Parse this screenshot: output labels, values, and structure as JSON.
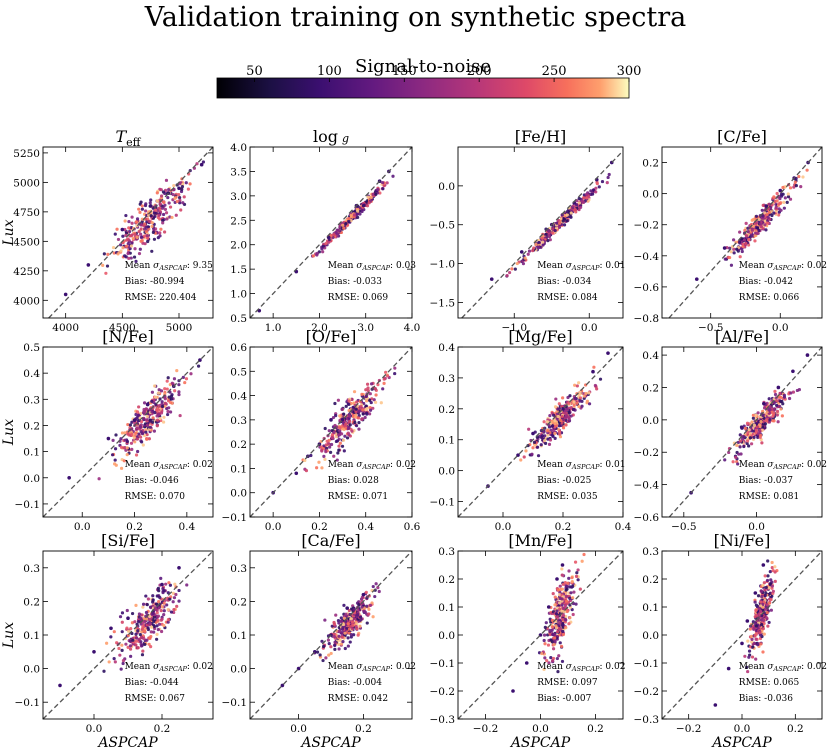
{
  "title": "Validation training on synthetic spectra",
  "colorbar": {
    "label": "Signal-to-noise",
    "ticks": [
      50,
      100,
      150,
      200,
      250,
      300
    ],
    "range": [
      25,
      300
    ],
    "colormap": "magma"
  },
  "chart_data": [
    {
      "type": "scatter",
      "title": "T_eff",
      "title_main": "T",
      "title_sub": "eff",
      "ylabel": "Lux",
      "xlabel": "",
      "xlim": [
        3800,
        5300
      ],
      "ylim": [
        3850,
        5300
      ],
      "xticks": [
        4000,
        4500,
        5000
      ],
      "yticks": [
        4000,
        4250,
        4500,
        4750,
        5000,
        5250
      ],
      "stats": {
        "mean_sigma": "9.35",
        "bias": "-80.994",
        "rmse": "220.404"
      },
      "scatter": [
        300,
        160
      ],
      "seed": 11,
      "points": [
        [
          4000,
          4050
        ],
        [
          4200,
          4300
        ],
        [
          4500,
          4600
        ],
        [
          4750,
          4800
        ],
        [
          5000,
          4950
        ],
        [
          5200,
          5150
        ]
      ]
    },
    {
      "type": "scatter",
      "title": "log g",
      "title_main": "log",
      "title_sub": "g",
      "ylabel": "",
      "xlabel": "",
      "xlim": [
        0.5,
        4.0
      ],
      "ylim": [
        0.5,
        4.0
      ],
      "xticks": [
        1,
        2,
        3,
        4
      ],
      "yticks": [
        0.5,
        1.0,
        1.5,
        2.0,
        2.5,
        3.0,
        3.5,
        4.0
      ],
      "stats": {
        "mean_sigma": "0.03",
        "bias": "-0.033",
        "rmse": "0.069"
      },
      "scatter": [
        0.6,
        0.07
      ],
      "seed": 12,
      "points": [
        [
          0.7,
          0.65
        ],
        [
          1.5,
          1.45
        ],
        [
          2.2,
          2.15
        ],
        [
          2.8,
          2.8
        ],
        [
          3.3,
          3.3
        ],
        [
          3.5,
          3.5
        ]
      ]
    },
    {
      "type": "scatter",
      "title": "[Fe/H]",
      "ylabel": "",
      "xlabel": "",
      "xlim": [
        -1.75,
        0.45
      ],
      "ylim": [
        -1.7,
        0.5
      ],
      "xticks": [
        -1,
        0
      ],
      "yticks": [
        -1.5,
        -1.0,
        -0.5,
        0.0
      ],
      "stats": {
        "mean_sigma": "0.01",
        "bias": "-0.034",
        "rmse": "0.084"
      },
      "scatter": [
        0.45,
        0.06
      ],
      "seed": 13,
      "points": [
        [
          -1.3,
          -1.2
        ],
        [
          -0.9,
          -0.85
        ],
        [
          -0.5,
          -0.5
        ],
        [
          -0.2,
          -0.22
        ],
        [
          0.1,
          0.08
        ],
        [
          0.3,
          0.3
        ]
      ]
    },
    {
      "type": "scatter",
      "title": "[C/Fe]",
      "ylabel": "",
      "xlabel": "",
      "xlim": [
        -0.85,
        0.3
      ],
      "ylim": [
        -0.8,
        0.3
      ],
      "xticks": [
        -0.5,
        0.0
      ],
      "yticks": [
        -0.8,
        -0.6,
        -0.4,
        -0.2,
        0.0,
        0.2
      ],
      "stats": {
        "mean_sigma": "0.02",
        "bias": "-0.042",
        "rmse": "0.066"
      },
      "scatter": [
        0.2,
        0.06
      ],
      "seed": 14,
      "points": [
        [
          -0.6,
          -0.55
        ],
        [
          -0.4,
          -0.35
        ],
        [
          -0.1,
          -0.08
        ],
        [
          0.0,
          0.02
        ],
        [
          0.1,
          0.1
        ],
        [
          0.2,
          0.2
        ]
      ]
    },
    {
      "type": "scatter",
      "title": "[N/Fe]",
      "ylabel": "Lux",
      "xlabel": "",
      "xlim": [
        -0.15,
        0.5
      ],
      "ylim": [
        -0.15,
        0.5
      ],
      "xticks": [
        0.0,
        0.2,
        0.4
      ],
      "yticks": [
        -0.1,
        0.0,
        0.1,
        0.2,
        0.3,
        0.4,
        0.5
      ],
      "stats": {
        "mean_sigma": "0.02",
        "bias": "-0.046",
        "rmse": "0.070"
      },
      "scatter": [
        0.11,
        0.06
      ],
      "seed": 15,
      "points": [
        [
          -0.05,
          0.0
        ],
        [
          0.1,
          0.15
        ],
        [
          0.2,
          0.22
        ],
        [
          0.25,
          0.28
        ],
        [
          0.35,
          0.35
        ],
        [
          0.45,
          0.45
        ]
      ]
    },
    {
      "type": "scatter",
      "title": "[O/Fe]",
      "ylabel": "",
      "xlabel": "",
      "xlim": [
        -0.1,
        0.6
      ],
      "ylim": [
        -0.1,
        0.6
      ],
      "xticks": [
        0.0,
        0.2,
        0.4,
        0.6
      ],
      "yticks": [
        -0.1,
        0.0,
        0.1,
        0.2,
        0.3,
        0.4,
        0.5,
        0.6
      ],
      "stats": {
        "mean_sigma": "0.02",
        "bias": "0.028",
        "rmse": "0.071"
      },
      "scatter": [
        0.13,
        0.07
      ],
      "seed": 16,
      "points": [
        [
          0.0,
          0.0
        ],
        [
          0.1,
          0.08
        ],
        [
          0.15,
          0.15
        ],
        [
          0.2,
          0.2
        ],
        [
          0.25,
          0.3
        ],
        [
          0.3,
          0.3
        ]
      ]
    },
    {
      "type": "scatter",
      "title": "[Mg/Fe]",
      "ylabel": "",
      "xlabel": "",
      "xlim": [
        -0.15,
        0.4
      ],
      "ylim": [
        -0.15,
        0.4
      ],
      "xticks": [
        0.0,
        0.2,
        0.4
      ],
      "yticks": [
        -0.1,
        0.0,
        0.1,
        0.2,
        0.3,
        0.4
      ],
      "stats": {
        "mean_sigma": "0.01",
        "bias": "-0.025",
        "rmse": "0.035"
      },
      "scatter": [
        0.09,
        0.04
      ],
      "seed": 17,
      "points": [
        [
          -0.05,
          -0.05
        ],
        [
          0.05,
          0.05
        ],
        [
          0.1,
          0.12
        ],
        [
          0.2,
          0.2
        ],
        [
          0.3,
          0.32
        ],
        [
          0.35,
          0.38
        ]
      ]
    },
    {
      "type": "scatter",
      "title": "[Al/Fe]",
      "ylabel": "",
      "xlabel": "",
      "xlim": [
        -0.65,
        0.45
      ],
      "ylim": [
        -0.6,
        0.45
      ],
      "xticks": [
        -0.5,
        0.0
      ],
      "yticks": [
        -0.6,
        -0.4,
        -0.2,
        0.0,
        0.2,
        0.4
      ],
      "stats": {
        "mean_sigma": "0.02",
        "bias": "-0.037",
        "rmse": "0.081"
      },
      "scatter": [
        0.17,
        0.07
      ],
      "seed": 18,
      "points": [
        [
          -0.45,
          -0.45
        ],
        [
          -0.1,
          -0.05
        ],
        [
          0.05,
          0.1
        ],
        [
          0.15,
          0.2
        ],
        [
          0.25,
          0.3
        ],
        [
          0.35,
          0.4
        ]
      ]
    },
    {
      "type": "scatter",
      "title": "[Si/Fe]",
      "ylabel": "Lux",
      "xlabel": "ASPCAP",
      "xlim": [
        -0.15,
        0.35
      ],
      "ylim": [
        -0.15,
        0.35
      ],
      "xticks": [
        0.0,
        0.2
      ],
      "yticks": [
        -0.1,
        0.0,
        0.1,
        0.2,
        0.3
      ],
      "stats": {
        "mean_sigma": "0.02",
        "bias": "-0.044",
        "rmse": "0.067"
      },
      "scatter": [
        0.08,
        0.06
      ],
      "seed": 19,
      "points": [
        [
          -0.1,
          -0.05
        ],
        [
          0.0,
          0.05
        ],
        [
          0.05,
          0.12
        ],
        [
          0.1,
          0.15
        ],
        [
          0.2,
          0.25
        ],
        [
          0.25,
          0.3
        ]
      ]
    },
    {
      "type": "scatter",
      "title": "[Ca/Fe]",
      "ylabel": "",
      "xlabel": "ASPCAP",
      "xlim": [
        -0.15,
        0.35
      ],
      "ylim": [
        -0.15,
        0.35
      ],
      "xticks": [
        0.0,
        0.2
      ],
      "yticks": [
        -0.1,
        0.0,
        0.1,
        0.2,
        0.3
      ],
      "stats": {
        "mean_sigma": "0.02",
        "bias": "-0.004",
        "rmse": "0.042"
      },
      "scatter": [
        0.06,
        0.04
      ],
      "seed": 20,
      "points": [
        [
          -0.05,
          -0.05
        ],
        [
          0.0,
          0.0
        ],
        [
          0.05,
          0.05
        ],
        [
          0.1,
          0.1
        ],
        [
          0.15,
          0.18
        ],
        [
          0.2,
          0.22
        ]
      ]
    },
    {
      "type": "scatter",
      "title": "[Mn/Fe]",
      "ylabel": "",
      "xlabel": "ASPCAP",
      "xlim": [
        -0.3,
        0.3
      ],
      "ylim": [
        -0.3,
        0.3
      ],
      "xticks": [
        -0.2,
        0.0,
        0.2
      ],
      "yticks": [
        -0.3,
        -0.2,
        -0.1,
        0.0,
        0.1,
        0.2,
        0.3
      ],
      "stats": {
        "mean_sigma": "0.02",
        "rmse": "0.097",
        "bias": "-0.007"
      },
      "stats_order": [
        "mean_sigma",
        "rmse",
        "bias"
      ],
      "scatter": [
        0.05,
        0.09
      ],
      "seed": 21,
      "slope": 2.2,
      "points": [
        [
          -0.1,
          -0.2
        ],
        [
          -0.05,
          -0.1
        ],
        [
          0.0,
          0.0
        ],
        [
          0.03,
          0.1
        ],
        [
          0.06,
          0.2
        ],
        [
          0.08,
          0.25
        ]
      ]
    },
    {
      "type": "scatter",
      "title": "[Ni/Fe]",
      "ylabel": "",
      "xlabel": "ASPCAP",
      "xlim": [
        -0.3,
        0.3
      ],
      "ylim": [
        -0.3,
        0.3
      ],
      "xticks": [
        -0.2,
        0.0,
        0.2
      ],
      "yticks": [
        -0.3,
        -0.2,
        -0.1,
        0.0,
        0.1,
        0.2,
        0.3
      ],
      "stats": {
        "mean_sigma": "0.02",
        "rmse": "0.065",
        "bias": "-0.036"
      },
      "stats_order": [
        "mean_sigma",
        "rmse",
        "bias"
      ],
      "scatter": [
        0.04,
        0.08
      ],
      "seed": 22,
      "slope": 2.6,
      "points": [
        [
          -0.1,
          -0.25
        ],
        [
          -0.05,
          -0.12
        ],
        [
          0.0,
          -0.03
        ],
        [
          0.02,
          0.05
        ],
        [
          0.05,
          0.15
        ],
        [
          0.08,
          0.25
        ]
      ]
    }
  ]
}
